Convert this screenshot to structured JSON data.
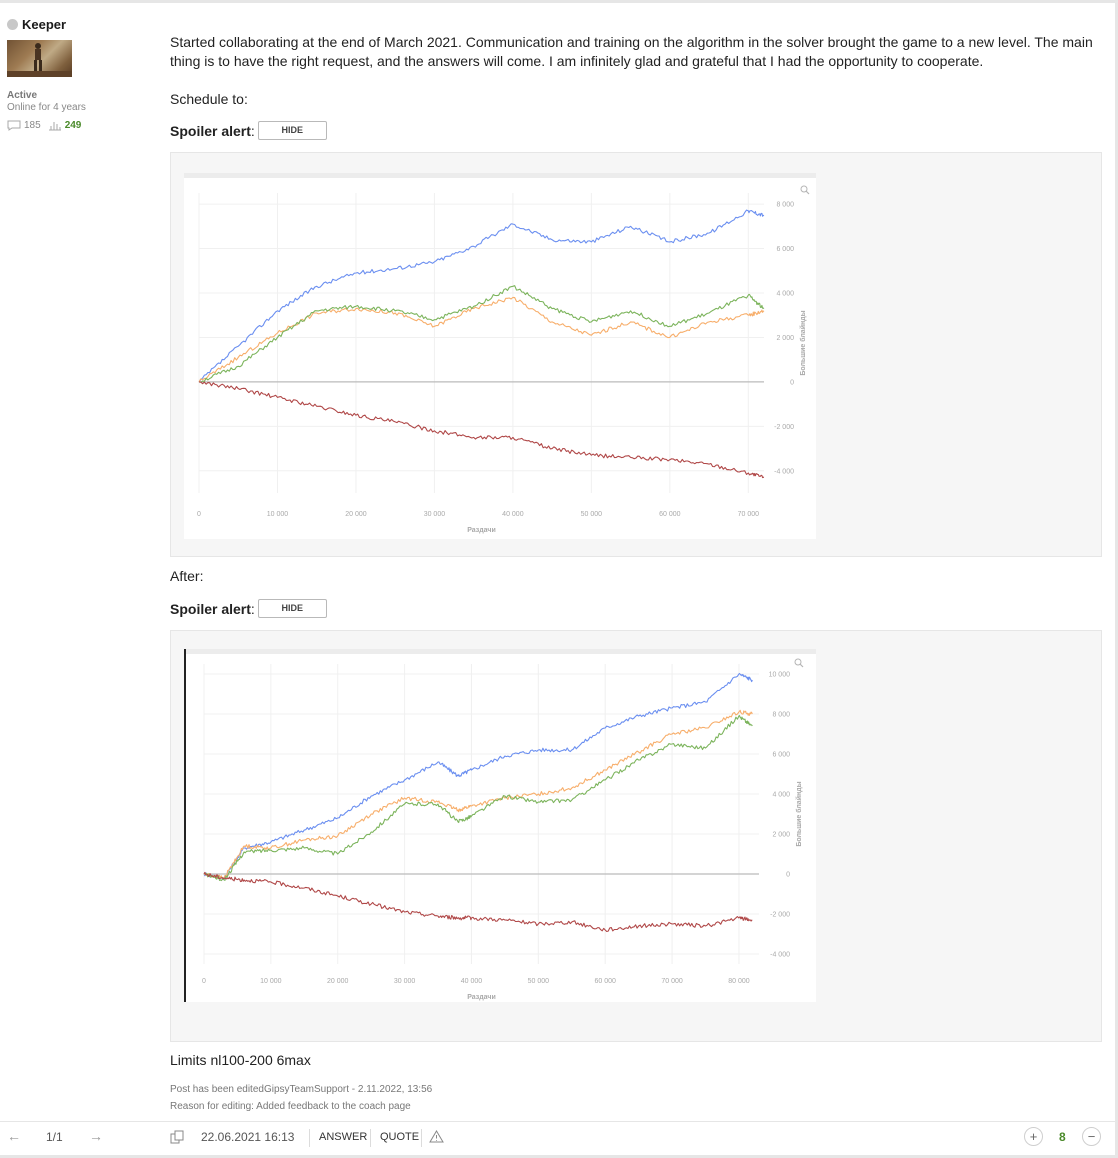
{
  "user": {
    "name": "Keeper",
    "status": "Active",
    "online": "Online for 4 years",
    "messages": "185",
    "likes": "249"
  },
  "post": {
    "body": "Started collaborating at the end of March 2021. Communication and training on the algorithm in the solver brought the game to a new level. The main thing is to have the right request, and the answers will come. I am infinitely glad and grateful that I had the opportunity to cooperate.",
    "schedule_label": "Schedule to:",
    "after_label": "After:",
    "limits": "Limits nl100-200 6max",
    "edited": "Post has been editedGipsyTeamSupport - 2.11.2022, 13:56",
    "reason": "Reason for editing: Added feedback to the coach page"
  },
  "spoiler": {
    "label": "Spoiler alert",
    "colon": ":",
    "button": "HIDE"
  },
  "footer": {
    "page": "1/1",
    "date": "22.06.2021 16:13",
    "answer": "ANSWER",
    "quote": "QUOTE",
    "score": "8",
    "plus": "+",
    "minus": "−",
    "prev": "←",
    "next": "→"
  },
  "colors": {
    "blue": "#6b8ff0",
    "orange": "#f7ae6b",
    "green": "#7cb45c",
    "red": "#b04848",
    "accent_green": "#4a8a2a"
  },
  "chart_data": [
    {
      "type": "line",
      "title": "",
      "xlabel": "Раздачи",
      "ylabel": "Большие блайнды",
      "x_ticks": [
        "0",
        "10 000",
        "20 000",
        "30 000",
        "40 000",
        "50 000",
        "60 000",
        "70 000"
      ],
      "y_ticks": [
        "8 000",
        "6 000",
        "4 000",
        "2 000",
        "0",
        "-2 000",
        "-4 000"
      ],
      "xlim": [
        0,
        72000
      ],
      "ylim": [
        -5000,
        8500
      ],
      "series": [
        {
          "color": "blue",
          "x": [
            0,
            5000,
            10000,
            15000,
            20000,
            25000,
            30000,
            35000,
            40000,
            45000,
            50000,
            55000,
            60000,
            65000,
            70000,
            72000
          ],
          "values": [
            0,
            1600,
            3200,
            4300,
            4900,
            5100,
            5400,
            6100,
            7100,
            6400,
            6300,
            7000,
            6300,
            6700,
            7700,
            7500
          ]
        },
        {
          "color": "orange",
          "x": [
            0,
            5000,
            10000,
            15000,
            20000,
            25000,
            30000,
            35000,
            40000,
            45000,
            50000,
            55000,
            60000,
            65000,
            70000,
            72000
          ],
          "values": [
            0,
            1100,
            2200,
            3100,
            3300,
            3100,
            2500,
            3300,
            3800,
            2700,
            2100,
            2700,
            2000,
            2700,
            3000,
            3200
          ]
        },
        {
          "color": "green",
          "x": [
            0,
            5000,
            10000,
            15000,
            20000,
            25000,
            30000,
            35000,
            40000,
            45000,
            50000,
            55000,
            60000,
            65000,
            70000,
            72000
          ],
          "values": [
            0,
            700,
            2000,
            3200,
            3400,
            3200,
            2800,
            3400,
            4300,
            3300,
            2700,
            3200,
            2500,
            3100,
            3900,
            3300
          ]
        },
        {
          "color": "red",
          "x": [
            0,
            5000,
            10000,
            15000,
            20000,
            25000,
            30000,
            35000,
            40000,
            45000,
            50000,
            55000,
            60000,
            65000,
            70000,
            72000
          ],
          "values": [
            0,
            -300,
            -700,
            -1100,
            -1500,
            -1800,
            -2200,
            -2500,
            -2500,
            -3000,
            -3300,
            -3400,
            -3500,
            -3700,
            -4100,
            -4300
          ]
        }
      ]
    },
    {
      "type": "line",
      "title": "",
      "xlabel": "Раздачи",
      "ylabel": "Большие блайнды",
      "x_ticks": [
        "0",
        "10 000",
        "20 000",
        "30 000",
        "40 000",
        "50 000",
        "60 000",
        "70 000",
        "80 000"
      ],
      "y_ticks": [
        "10 000",
        "8 000",
        "6 000",
        "4 000",
        "2 000",
        "0",
        "-2 000",
        "-4 000"
      ],
      "xlim": [
        0,
        83000
      ],
      "ylim": [
        -4500,
        10500
      ],
      "series": [
        {
          "color": "blue",
          "x": [
            0,
            3000,
            6000,
            10000,
            15000,
            20000,
            25000,
            30000,
            35000,
            38000,
            40000,
            45000,
            50000,
            55000,
            60000,
            65000,
            70000,
            75000,
            80000,
            82000
          ],
          "values": [
            0,
            -200,
            1300,
            1600,
            2200,
            2800,
            3900,
            4700,
            5600,
            4900,
            5200,
            5900,
            6200,
            6200,
            7300,
            7900,
            8300,
            8600,
            10000,
            9700
          ]
        },
        {
          "color": "orange",
          "x": [
            0,
            3000,
            6000,
            10000,
            15000,
            20000,
            25000,
            30000,
            35000,
            38000,
            40000,
            45000,
            50000,
            55000,
            60000,
            65000,
            70000,
            75000,
            80000,
            82000
          ],
          "values": [
            0,
            -200,
            1400,
            1300,
            1700,
            1900,
            3000,
            3800,
            3600,
            3200,
            3400,
            3800,
            4000,
            4300,
            5200,
            6100,
            7000,
            7300,
            8100,
            8000
          ]
        },
        {
          "color": "green",
          "x": [
            0,
            3000,
            6000,
            10000,
            15000,
            20000,
            25000,
            30000,
            35000,
            38000,
            40000,
            45000,
            50000,
            55000,
            60000,
            65000,
            70000,
            75000,
            80000,
            82000
          ],
          "values": [
            0,
            -300,
            1100,
            1200,
            1300,
            1000,
            2100,
            3500,
            3500,
            2600,
            2900,
            3900,
            3600,
            3700,
            4700,
            5700,
            6500,
            6300,
            7900,
            7400
          ]
        },
        {
          "color": "red",
          "x": [
            0,
            3000,
            6000,
            10000,
            15000,
            20000,
            25000,
            30000,
            35000,
            38000,
            40000,
            45000,
            50000,
            55000,
            60000,
            65000,
            70000,
            75000,
            80000,
            82000
          ],
          "values": [
            0,
            -200,
            -300,
            -400,
            -700,
            -1100,
            -1500,
            -1900,
            -2100,
            -2200,
            -2200,
            -2300,
            -2500,
            -2400,
            -2800,
            -2600,
            -2500,
            -2600,
            -2200,
            -2300
          ]
        }
      ]
    }
  ]
}
